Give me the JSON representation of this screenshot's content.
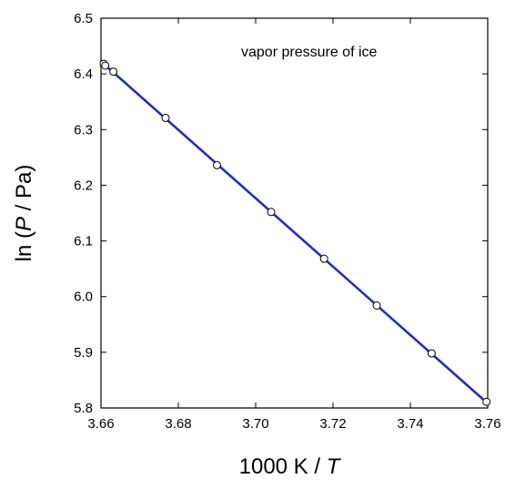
{
  "chart_data": {
    "type": "line",
    "annotation": "vapor pressure of ice",
    "xlabel": {
      "prefix": "1000 K / ",
      "var": "T"
    },
    "ylabel": {
      "prefix": "ln (",
      "var": "P",
      "suffix": " / Pa)"
    },
    "xlim": [
      3.66,
      3.76
    ],
    "ylim": [
      5.8,
      6.5
    ],
    "x_ticks": [
      3.66,
      3.68,
      3.7,
      3.72,
      3.74,
      3.76
    ],
    "x_tick_labels": [
      "3.66",
      "3.68",
      "3.70",
      "3.72",
      "3.74",
      "3.76"
    ],
    "y_ticks": [
      5.8,
      5.9,
      6.0,
      6.1,
      6.2,
      6.3,
      6.4,
      6.5
    ],
    "y_tick_labels": [
      "5.8",
      "5.9",
      "6.0",
      "6.1",
      "6.2",
      "6.3",
      "6.4",
      "6.5"
    ],
    "grid": false,
    "line_color": "#1f2fbf",
    "fit_line": {
      "x": [
        3.6607,
        3.7597
      ],
      "y": [
        6.418,
        5.81
      ]
    },
    "points": [
      {
        "x": 3.6607,
        "y": 6.418
      },
      {
        "x": 3.6611,
        "y": 6.415
      },
      {
        "x": 3.6632,
        "y": 6.404
      },
      {
        "x": 3.6767,
        "y": 6.321
      },
      {
        "x": 3.69,
        "y": 6.236
      },
      {
        "x": 3.704,
        "y": 6.152
      },
      {
        "x": 3.7177,
        "y": 6.068
      },
      {
        "x": 3.7313,
        "y": 5.984
      },
      {
        "x": 3.7455,
        "y": 5.898
      },
      {
        "x": 3.7597,
        "y": 5.811
      }
    ]
  }
}
